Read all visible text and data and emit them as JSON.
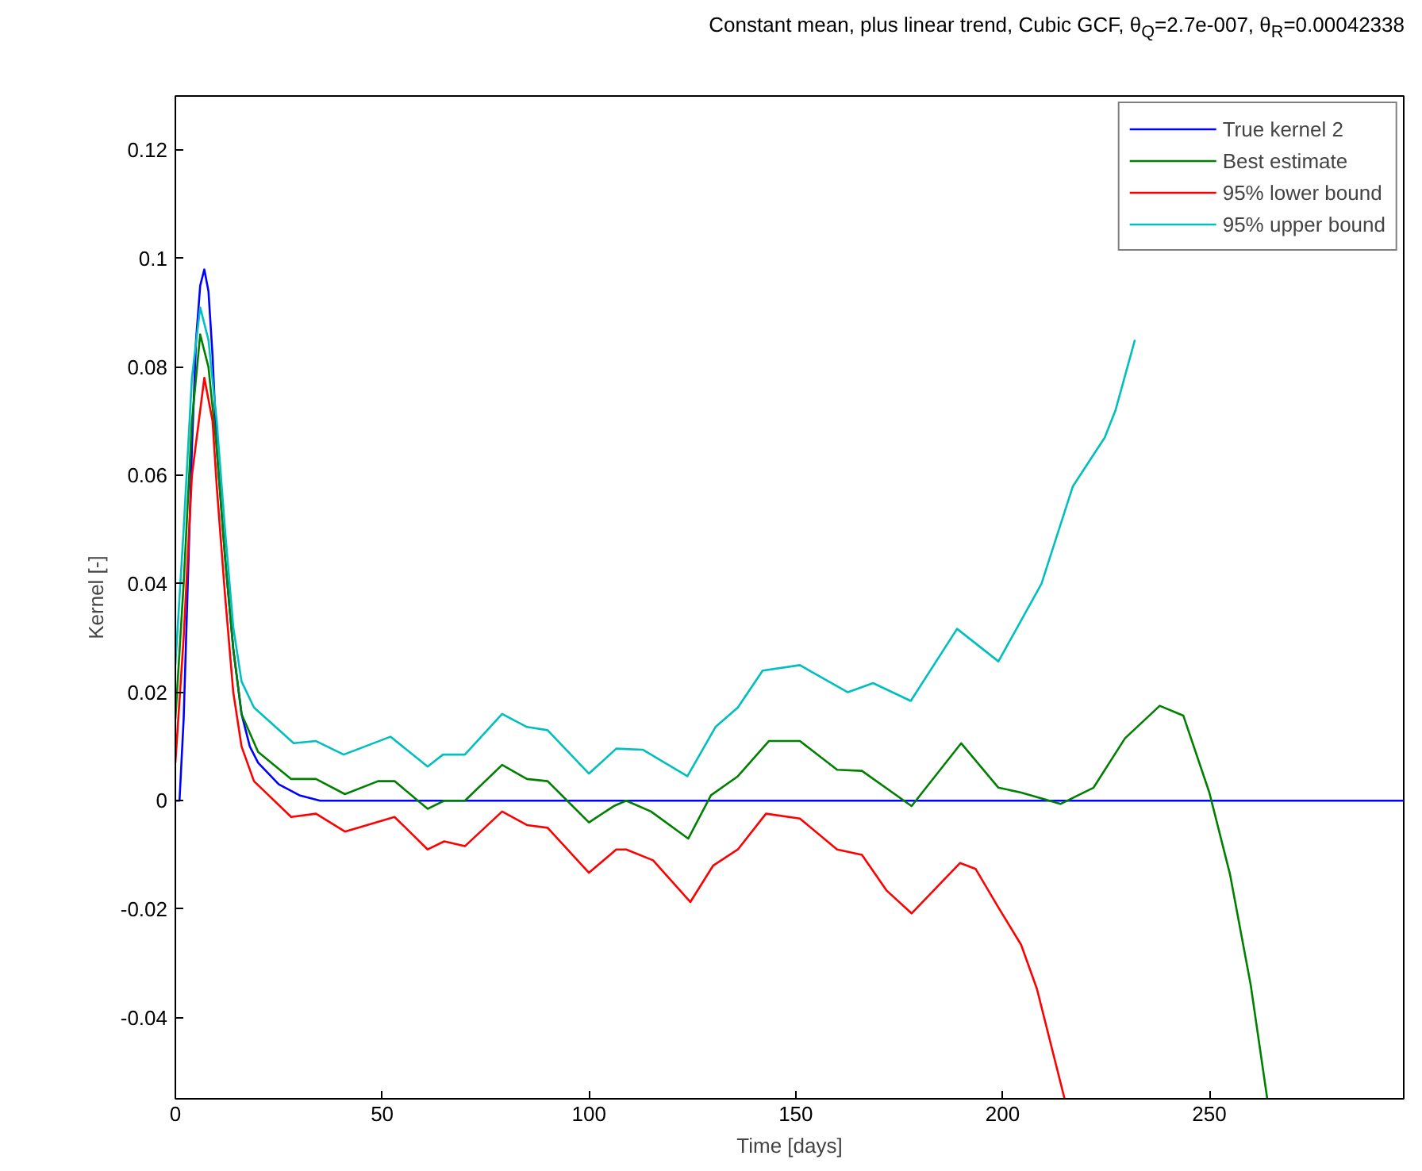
{
  "chart_data": {
    "type": "line",
    "title": "Constant mean, plus linear trend, Cubic GCF, θ$_{Q}$=2.7e-007, θ$_{R}$=0.00042338",
    "xlabel": "Time [days]",
    "ylabel": "Kernel [-]",
    "xlim": [
      0,
      297
    ],
    "ylim": [
      -0.055,
      0.13
    ],
    "xticks": [
      0,
      50,
      100,
      150,
      200,
      250
    ],
    "yticks": [
      -0.04,
      -0.02,
      0,
      0.02,
      0.04,
      0.06,
      0.08,
      0.1,
      0.12
    ],
    "grid": false,
    "legend": "top right",
    "marker": "none",
    "line_style": "solid",
    "series": [
      {
        "name": "True kernel 2",
        "color": "#0000ff",
        "x": [
          0,
          1,
          2,
          3,
          4,
          5,
          6,
          7,
          8,
          9,
          10,
          12,
          14,
          16,
          18,
          20,
          25,
          30,
          35,
          297
        ],
        "values": [
          0,
          0,
          0.015,
          0.04,
          0.065,
          0.085,
          0.095,
          0.098,
          0.094,
          0.082,
          0.065,
          0.045,
          0.028,
          0.016,
          0.01,
          0.007,
          0.003,
          0.001,
          0,
          0
        ]
      },
      {
        "name": "Best estimate",
        "color": "#008000",
        "x": [
          0,
          2,
          4,
          6,
          8,
          10,
          12,
          14,
          16,
          20,
          28,
          34,
          41,
          49,
          53,
          61,
          65,
          70,
          79,
          85,
          90,
          100,
          106,
          109,
          115,
          124,
          129.5,
          136,
          143.5,
          151,
          160,
          166,
          178,
          190,
          199,
          204.5,
          214,
          222,
          229.6,
          238,
          243.7,
          250,
          255,
          260,
          264
        ],
        "values": [
          0.015,
          0.04,
          0.07,
          0.086,
          0.08,
          0.065,
          0.045,
          0.028,
          0.016,
          0.009,
          0.004,
          0.004,
          0.0012,
          0.0036,
          0.0036,
          -0.0015,
          0,
          0,
          0.0066,
          0.004,
          0.0036,
          -0.004,
          -0.001,
          0,
          -0.002,
          -0.007,
          0.001,
          0.0045,
          0.011,
          0.011,
          0.0057,
          0.0055,
          -0.001,
          0.0106,
          0.0024,
          0.0015,
          -0.0006,
          0.0024,
          0.0115,
          0.0175,
          0.0157,
          0.0015,
          -0.0136,
          -0.034,
          -0.055
        ]
      },
      {
        "name": "95% lower bound",
        "color": "#ff0000",
        "x": [
          0,
          2,
          4,
          7,
          9,
          10,
          12,
          14,
          16,
          19,
          28,
          34,
          41,
          53,
          61,
          65,
          70,
          79,
          85,
          90,
          100,
          106.6,
          109,
          115.5,
          124.5,
          130,
          136,
          142.8,
          151,
          160,
          166,
          172,
          178,
          189.7,
          193.5,
          199,
          204.5,
          208.3,
          215
        ],
        "values": [
          0.007,
          0.03,
          0.06,
          0.078,
          0.07,
          0.058,
          0.038,
          0.02,
          0.01,
          0.0036,
          -0.003,
          -0.0024,
          -0.0057,
          -0.003,
          -0.009,
          -0.0075,
          -0.0084,
          -0.002,
          -0.0045,
          -0.005,
          -0.0133,
          -0.009,
          -0.009,
          -0.011,
          -0.0187,
          -0.012,
          -0.009,
          -0.0024,
          -0.0033,
          -0.009,
          -0.01,
          -0.0166,
          -0.0208,
          -0.0115,
          -0.0126,
          -0.0197,
          -0.0266,
          -0.0347,
          -0.055
        ]
      },
      {
        "name": "95% upper bound",
        "color": "#00bfbf",
        "x": [
          0,
          2,
          4,
          6,
          8,
          10,
          12,
          14,
          16,
          19,
          28.6,
          34,
          40.7,
          52,
          61,
          64.7,
          70,
          79,
          85,
          90,
          100,
          106.6,
          113,
          123.8,
          130.6,
          136,
          142,
          151,
          162.6,
          168.7,
          177.8,
          189,
          199,
          209.4,
          217,
          224.7,
          227.3,
          232
        ],
        "values": [
          0.025,
          0.05,
          0.078,
          0.091,
          0.085,
          0.07,
          0.05,
          0.032,
          0.022,
          0.0172,
          0.0106,
          0.011,
          0.0085,
          0.0118,
          0.0063,
          0.0085,
          0.0085,
          0.016,
          0.0136,
          0.013,
          0.005,
          0.0096,
          0.0094,
          0.0045,
          0.0136,
          0.0172,
          0.024,
          0.025,
          0.02,
          0.0217,
          0.0184,
          0.0317,
          0.0257,
          0.04,
          0.058,
          0.067,
          0.072,
          0.085
        ]
      }
    ]
  }
}
